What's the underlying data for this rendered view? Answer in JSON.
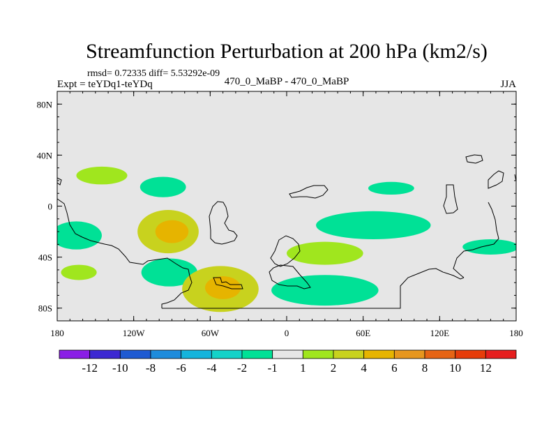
{
  "chart_data": {
    "type": "heatmap",
    "title": "Streamfunction Perturbation at 200 hPa (km2/s)",
    "stats": "rmsd= 0.72335 diff= 5.53292e-09",
    "expt": "Expt = teYDq1-teYDq",
    "case": "470_0_MaBP - 470_0_MaBP",
    "season": "JJA",
    "x_range": [
      -180,
      180
    ],
    "y_range": [
      -90,
      90
    ],
    "x_ticks": [
      {
        "value": -180,
        "label": "180"
      },
      {
        "value": -120,
        "label": "120W"
      },
      {
        "value": -60,
        "label": "60W"
      },
      {
        "value": 0,
        "label": "0"
      },
      {
        "value": 60,
        "label": "60E"
      },
      {
        "value": 120,
        "label": "120E"
      },
      {
        "value": 180,
        "label": "180"
      }
    ],
    "y_ticks": [
      {
        "value": 80,
        "label": "80N"
      },
      {
        "value": 40,
        "label": "40N"
      },
      {
        "value": 0,
        "label": "0"
      },
      {
        "value": -40,
        "label": "40S"
      },
      {
        "value": -80,
        "label": "80S"
      }
    ],
    "background_color": "#e6e6e6",
    "colorbar": {
      "colors": [
        "#8a1ee6",
        "#3c28d2",
        "#1e5ad2",
        "#1e8cdc",
        "#14b4dc",
        "#14d2c8",
        "#00e196",
        "#e6e6e6",
        "#a0e61e",
        "#c8d21e",
        "#e6b400",
        "#e6961e",
        "#e66414",
        "#e63c0a",
        "#e61e1e"
      ],
      "labels": [
        "-12",
        "-10",
        "-8",
        "-6",
        "-4",
        "-2",
        "-1",
        "1",
        "2",
        "4",
        "6",
        "8",
        "10",
        "12"
      ]
    },
    "anomalies": [
      {
        "lon": -145,
        "lat": 24,
        "rx": 20,
        "ry": 7,
        "level": 1,
        "sign": 1
      },
      {
        "lon": -165,
        "lat": -23,
        "rx": 20,
        "ry": 11,
        "level": 1,
        "sign": -1
      },
      {
        "lon": -163,
        "lat": -52,
        "rx": 14,
        "ry": 6,
        "level": 1,
        "sign": 1
      },
      {
        "lon": -97,
        "lat": 15,
        "rx": 18,
        "ry": 8,
        "level": 1,
        "sign": -1
      },
      {
        "lon": -93,
        "lat": -20,
        "rx": 24,
        "ry": 17,
        "level": 2,
        "sign": 1
      },
      {
        "lon": -90,
        "lat": -20,
        "rx": 13,
        "ry": 9,
        "level": 3,
        "sign": 1
      },
      {
        "lon": -92,
        "lat": -52,
        "rx": 22,
        "ry": 11,
        "level": 1,
        "sign": -1
      },
      {
        "lon": -52,
        "lat": -65,
        "rx": 30,
        "ry": 18,
        "level": 2,
        "sign": 1
      },
      {
        "lon": -50,
        "lat": -64,
        "rx": 14,
        "ry": 9,
        "level": 3,
        "sign": 1
      },
      {
        "lon": 30,
        "lat": -37,
        "rx": 30,
        "ry": 9,
        "level": 1,
        "sign": 1
      },
      {
        "lon": 30,
        "lat": -66,
        "rx": 42,
        "ry": 12,
        "level": 1,
        "sign": -1
      },
      {
        "lon": 68,
        "lat": -15,
        "rx": 45,
        "ry": 11,
        "level": 1,
        "sign": -1
      },
      {
        "lon": 82,
        "lat": 14,
        "rx": 18,
        "ry": 5,
        "level": 1,
        "sign": -1
      },
      {
        "lon": 160,
        "lat": -32,
        "rx": 22,
        "ry": 6,
        "level": 1,
        "sign": -1
      }
    ]
  }
}
